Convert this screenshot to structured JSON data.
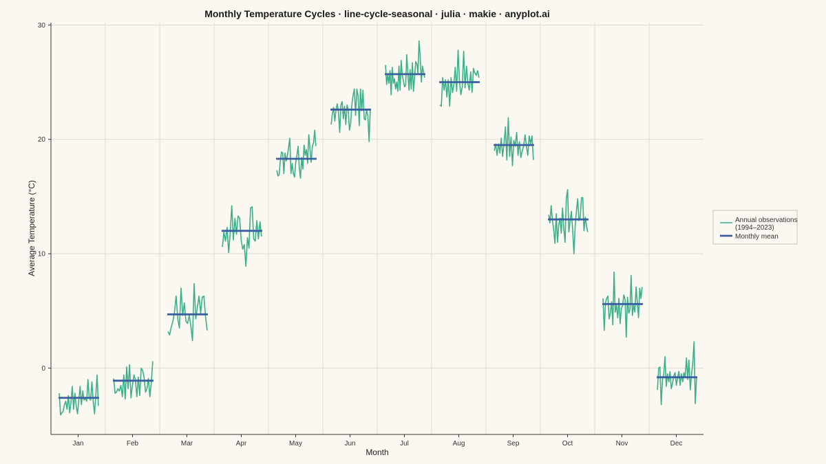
{
  "chart_data": {
    "type": "line",
    "title": "Monthly Temperature Cycles · line-cycle-seasonal · julia · makie · anyplot.ai",
    "xlabel": "Month",
    "ylabel": "Average Temperature (°C)",
    "ylim": [
      -5.8,
      30.2
    ],
    "yticks": [
      0,
      10,
      20,
      30
    ],
    "categories": [
      "Jan",
      "Feb",
      "Mar",
      "Apr",
      "May",
      "Jun",
      "Jul",
      "Aug",
      "Sep",
      "Oct",
      "Nov",
      "Dec"
    ],
    "grid": true,
    "legend_position": "right",
    "colors": {
      "observations": "#3BAF8A",
      "mean": "#3A5FA0"
    },
    "series": [
      {
        "name": "Annual observations\n(1994–2023)",
        "role": "observations",
        "values": [
          [
            -2.2,
            -4.1,
            -3.9,
            -3.8,
            -3.2,
            -2.9,
            -3.6,
            -2.4,
            -3.9,
            -3.0,
            -1.6,
            -3.6,
            -2.2,
            -3.3,
            -4.0,
            -2.8,
            -1.6,
            -3.2,
            -2.0,
            -2.8,
            -2.6,
            -2.9,
            -1.0,
            -2.6,
            -2.8,
            -1.2,
            -2.9,
            -4.0,
            -2.5,
            -0.6,
            -3.3
          ],
          [
            -0.9,
            -2.2,
            -2.1,
            -1.8,
            -2.0,
            -1.5,
            -2.5,
            -0.6,
            -2.7,
            0.1,
            -1.8,
            0.3,
            -2.6,
            -1.5,
            -0.6,
            -1.0,
            -2.5,
            -0.8,
            -2.4,
            0.0,
            -0.2,
            -0.8,
            -2.1,
            -1.8,
            -0.9,
            -2.5,
            -1.3,
            0.6
          ],
          [
            3.2,
            2.9,
            3.6,
            4.1,
            4.9,
            6.3,
            4.3,
            3.5,
            7.0,
            4.6,
            5.7,
            4.1,
            3.9,
            4.6,
            3.7,
            2.4,
            7.4,
            4.3,
            5.3,
            6.3,
            4.8,
            6.2,
            6.3,
            4.5,
            3.3
          ],
          [
            10.6,
            11.9,
            11.1,
            12.3,
            10.1,
            11.8,
            14.2,
            11.2,
            13.1,
            11.7,
            13.3,
            13.1,
            11.2,
            10.4,
            10.8,
            8.9,
            11.4,
            10.5,
            14.0,
            14.1,
            11.3,
            11.1,
            12.9,
            11.3,
            12.8,
            11.5
          ],
          [
            17.3,
            16.8,
            16.9,
            18.1,
            18.9,
            18.8,
            17.0,
            18.8,
            18.1,
            18.6,
            19.3,
            20.1,
            17.0,
            17.9,
            17.0,
            16.7,
            18.0,
            18.6,
            19.4,
            17.5,
            16.6,
            18.4,
            17.4,
            19.5,
            18.6,
            19.1,
            17.9,
            20.4,
            19.2,
            18.0,
            19.4,
            19.7,
            20.8,
            19.4
          ],
          [
            21.3,
            22.2,
            22.8,
            21.6,
            22.6,
            23.1,
            22.4,
            20.6,
            23.0,
            23.3,
            21.8,
            22.9,
            21.3,
            23.0,
            22.6,
            20.8,
            21.4,
            23.1,
            23.9,
            24.4,
            22.1,
            24.4,
            23.8,
            21.2,
            24.4,
            22.5,
            24.3,
            21.8,
            21.7,
            22.6,
            22.1,
            19.8,
            22.6
          ],
          [
            26.5,
            24.8,
            25.7,
            24.9,
            26.0,
            23.9,
            26.3,
            24.9,
            25.3,
            24.4,
            25.0,
            24.2,
            26.4,
            24.3,
            26.9,
            25.6,
            25.1,
            24.6,
            24.7,
            27.4,
            25.8,
            24.3,
            26.1,
            24.4,
            26.7,
            24.2,
            25.4,
            26.8,
            26.6,
            25.8,
            28.6,
            27.3,
            25.0,
            26.4,
            25.9,
            25.4
          ],
          [
            23.0,
            22.9,
            25.4,
            24.3,
            25.2,
            23.7,
            25.2,
            22.9,
            25.4,
            24.1,
            24.8,
            26.3,
            24.2,
            27.8,
            25.1,
            23.9,
            24.6,
            27.7,
            24.5,
            26.4,
            24.9,
            24.3,
            25.9,
            24.1,
            26.2,
            25.8,
            25.6,
            26.0,
            25.4
          ],
          [
            19.0,
            19.6,
            18.6,
            19.6,
            18.8,
            20.1,
            18.5,
            19.7,
            21.1,
            18.2,
            21.9,
            18.5,
            20.2,
            17.7,
            19.9,
            19.4,
            20.6,
            18.6,
            19.8,
            18.4,
            19.0,
            19.4,
            20.4,
            19.4,
            18.6,
            20.3,
            19.6,
            20.3,
            18.2
          ],
          [
            13.4,
            12.7,
            14.2,
            12.9,
            12.1,
            10.9,
            13.5,
            11.0,
            12.5,
            13.1,
            11.8,
            14.0,
            12.2,
            11.0,
            14.8,
            15.6,
            11.9,
            12.9,
            13.7,
            12.1,
            10.0,
            12.4,
            13.7,
            14.8,
            12.9,
            13.2,
            14.9,
            14.9,
            12.0,
            13.2,
            12.4,
            11.9
          ],
          [
            6.1,
            3.3,
            5.7,
            6.1,
            6.3,
            4.3,
            4.8,
            5.8,
            3.8,
            8.4,
            4.9,
            5.5,
            4.4,
            6.1,
            3.9,
            5.2,
            5.5,
            6.4,
            6.0,
            2.7,
            6.2,
            4.8,
            5.1,
            8.1,
            4.6,
            5.5,
            4.9,
            7.1,
            5.8,
            4.4,
            7.0,
            6.1,
            7.1
          ],
          [
            -1.9,
            0.0,
            0.1,
            -3.2,
            -1.0,
            -0.6,
            1.0,
            -1.6,
            -0.5,
            -1.2,
            -0.3,
            -1.8,
            -1.3,
            -0.7,
            -0.4,
            -1.5,
            -0.8,
            -0.3,
            -1.5,
            -0.5,
            -1.2,
            -0.4,
            -0.8,
            0.9,
            -1.0,
            0.7,
            -1.9,
            -0.6,
            0.4,
            2.3,
            -3.1,
            -0.8
          ]
        ]
      },
      {
        "name": "Monthly mean",
        "role": "mean",
        "values": [
          -2.6,
          -1.1,
          4.7,
          12.0,
          18.3,
          22.6,
          25.7,
          25.0,
          19.5,
          13.0,
          5.6,
          -0.8
        ]
      }
    ]
  }
}
